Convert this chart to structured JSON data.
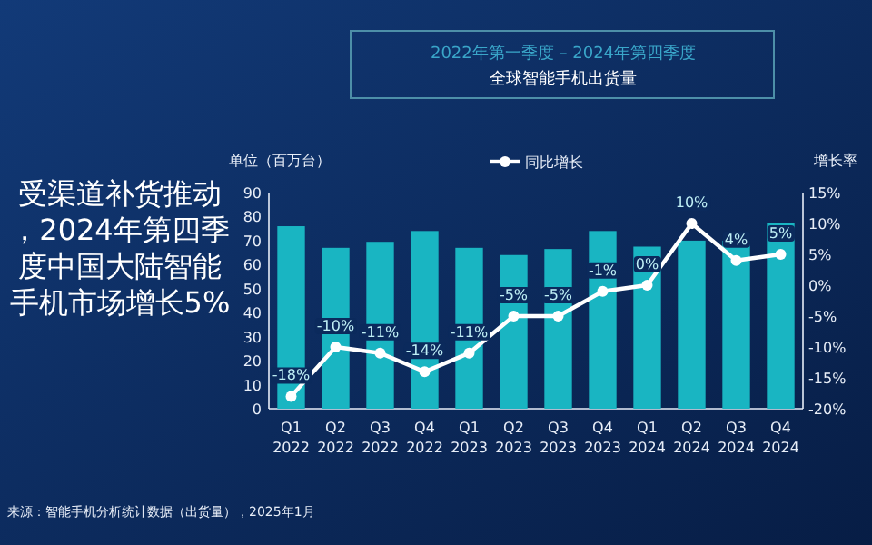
{
  "chart_data": {
    "type": "bar",
    "subtitle": "2022年第一季度 – 2024年第四季度",
    "title": "全球智能手机出货量",
    "ylabel": "单位（百万台）",
    "y2label": "增长率",
    "annotations": [
      "受渠道补货推动，2024年第四季度中国大陆智能手机市场增长5%",
      "来源：智能手机分析统计数据（出货量），2025年1月"
    ],
    "categories": [
      "Q1 2022",
      "Q2 2022",
      "Q3 2022",
      "Q4 2022",
      "Q1 2023",
      "Q2 2023",
      "Q3 2023",
      "Q4 2023",
      "Q1 2024",
      "Q2 2024",
      "Q3 2024",
      "Q4 2024"
    ],
    "series": [
      {
        "color": "#19b5c2",
        "values": [
          76,
          67,
          69.5,
          74,
          67,
          64,
          66.5,
          74,
          67.5,
          70,
          70,
          77.5
        ]
      },
      {
        "type": "line",
        "name": "同比增长",
        "axis": "y2",
        "color": "#ffffff",
        "marker": "circle",
        "values": [
          -18,
          -10,
          -11,
          -14,
          -11,
          -5,
          -5,
          -1,
          0,
          10,
          4,
          5
        ],
        "value_labels": [
          "-18%",
          "-10%",
          "-11%",
          "-14%",
          "-11%",
          "-5%",
          "-5%",
          "-1%",
          "0%",
          "10%",
          "4%",
          "5%"
        ]
      }
    ],
    "ylim": [
      0,
      90
    ],
    "yticks": [
      0,
      10,
      20,
      30,
      40,
      50,
      60,
      70,
      80,
      90
    ],
    "y2lim": [
      -20,
      15
    ],
    "y2ticks": [
      {
        "value": -20,
        "label": "-20%"
      },
      {
        "value": -15,
        "label": "-15%"
      },
      {
        "value": -10,
        "label": "-10%"
      },
      {
        "value": -5,
        "label": "-5%"
      },
      {
        "value": 0,
        "label": "0%"
      },
      {
        "value": 5,
        "label": "5%"
      },
      {
        "value": 10,
        "label": "10%"
      },
      {
        "value": 15,
        "label": "15%"
      }
    ],
    "legend": "top",
    "grid": false
  }
}
